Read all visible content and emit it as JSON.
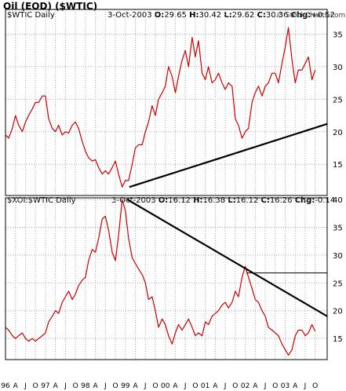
{
  "title": "Oil (EOD) ($WTIC)",
  "watermark": "© StockCharts.com",
  "colors": {
    "price": "#cc0000",
    "trend": "#000000",
    "grid": "#a8a8a8",
    "frame": "#000000"
  },
  "chart_data": [
    {
      "type": "line",
      "symbol": "$WTIC Daily",
      "header": {
        "date": "3-Oct-2003",
        "O": "29.65",
        "H": "30.42",
        "L": "29.62",
        "C": "30.36",
        "Chg": "+0.52"
      },
      "ylim": [
        10.2,
        38.8
      ],
      "yticks": [
        15,
        20,
        25,
        30,
        35
      ],
      "grid": true,
      "series": [
        {
          "x": [
            1996.0,
            1996.08,
            1996.17,
            1996.25,
            1996.33,
            1996.42,
            1996.5,
            1996.58,
            1996.67,
            1996.75,
            1996.83,
            1996.92,
            1997.0,
            1997.08,
            1997.17,
            1997.25,
            1997.33,
            1997.42,
            1997.5,
            1997.58,
            1997.67,
            1997.75,
            1997.83,
            1997.92,
            1998.0,
            1998.08,
            1998.17,
            1998.25,
            1998.33,
            1998.42,
            1998.5,
            1998.58,
            1998.67,
            1998.75,
            1998.83,
            1998.92,
            1999.0,
            1999.08,
            1999.17,
            1999.25,
            1999.33,
            1999.42,
            1999.5,
            1999.58,
            1999.67,
            1999.75,
            1999.83,
            1999.92,
            2000.0,
            2000.08,
            2000.17,
            2000.25,
            2000.33,
            2000.42,
            2000.5,
            2000.58,
            2000.67,
            2000.75,
            2000.83,
            2000.92,
            2001.0,
            2001.08,
            2001.17,
            2001.25,
            2001.33,
            2001.42,
            2001.5,
            2001.58,
            2001.67,
            2001.75,
            2001.83,
            2001.92,
            2002.0,
            2002.08,
            2002.17,
            2002.25,
            2002.33,
            2002.42,
            2002.5,
            2002.58,
            2002.67,
            2002.75,
            2002.83,
            2002.92,
            2003.0,
            2003.08,
            2003.17,
            2003.25,
            2003.33,
            2003.42,
            2003.5,
            2003.58,
            2003.67,
            2003.75
          ],
          "values": [
            19.5,
            19.0,
            20.5,
            22.5,
            21.0,
            20.0,
            21.5,
            22.5,
            23.5,
            24.5,
            24.5,
            25.5,
            25.5,
            22.0,
            20.5,
            20.0,
            21.0,
            19.5,
            20.0,
            19.8,
            21.0,
            21.5,
            20.5,
            18.5,
            17.0,
            16.0,
            15.5,
            15.7,
            14.5,
            13.5,
            14.0,
            13.5,
            14.5,
            15.5,
            13.5,
            11.5,
            12.5,
            12.5,
            15.0,
            17.5,
            18.0,
            18.0,
            20.0,
            21.5,
            24.0,
            22.5,
            25.0,
            26.0,
            27.0,
            30.0,
            28.5,
            26.0,
            28.5,
            31.0,
            32.5,
            30.0,
            34.5,
            31.5,
            34.0,
            29.0,
            28.0,
            30.0,
            27.5,
            28.0,
            29.0,
            27.5,
            26.5,
            27.5,
            27.0,
            22.0,
            21.0,
            19.0,
            20.0,
            20.5,
            24.5,
            26.0,
            27.0,
            25.5,
            27.0,
            27.5,
            29.0,
            29.0,
            27.5,
            30.5,
            33.0,
            36.0,
            31.0,
            27.5,
            29.5,
            29.5,
            30.5,
            31.5,
            28.0,
            29.5
          ]
        }
      ],
      "trendline": {
        "x": [
          1999.1,
          2004.05
        ],
        "y": [
          11.5,
          21.2
        ]
      }
    },
    {
      "type": "line",
      "symbol": "$XOI:$WTIC Daily",
      "header": {
        "date": "3-Oct-2003",
        "O": "16.12",
        "H": "16.38",
        "L": "16.12",
        "C": "16.26",
        "Chg": "-0.14"
      },
      "ylim": [
        11.2,
        40.3
      ],
      "yticks": [
        15,
        20,
        25,
        30,
        35,
        40
      ],
      "grid": true,
      "xticks": [
        "96",
        "A",
        "J",
        "O",
        "97",
        "A",
        "J",
        "O",
        "98",
        "A",
        "J",
        "O",
        "99",
        "A",
        "J",
        "O",
        "00",
        "A",
        "J",
        "O",
        "01",
        "A",
        "J",
        "O",
        "02",
        "A",
        "J",
        "O",
        "03",
        "A",
        "J",
        "O"
      ],
      "series": [
        {
          "x": [
            1996.0,
            1996.08,
            1996.17,
            1996.25,
            1996.33,
            1996.42,
            1996.5,
            1996.58,
            1996.67,
            1996.75,
            1996.83,
            1996.92,
            1997.0,
            1997.08,
            1997.17,
            1997.25,
            1997.33,
            1997.42,
            1997.5,
            1997.58,
            1997.67,
            1997.75,
            1997.83,
            1997.92,
            1998.0,
            1998.08,
            1998.17,
            1998.25,
            1998.33,
            1998.42,
            1998.5,
            1998.58,
            1998.67,
            1998.75,
            1998.83,
            1998.92,
            1999.0,
            1999.08,
            1999.17,
            1999.25,
            1999.33,
            1999.42,
            1999.5,
            1999.58,
            1999.67,
            1999.75,
            1999.83,
            1999.92,
            2000.0,
            2000.08,
            2000.17,
            2000.25,
            2000.33,
            2000.42,
            2000.5,
            2000.58,
            2000.67,
            2000.75,
            2000.83,
            2000.92,
            2001.0,
            2001.08,
            2001.17,
            2001.25,
            2001.33,
            2001.42,
            2001.5,
            2001.58,
            2001.67,
            2001.75,
            2001.83,
            2001.92,
            2002.0,
            2002.08,
            2002.17,
            2002.25,
            2002.33,
            2002.42,
            2002.5,
            2002.58,
            2002.67,
            2002.75,
            2002.83,
            2002.92,
            2003.0,
            2003.08,
            2003.17,
            2003.25,
            2003.33,
            2003.42,
            2003.5,
            2003.58,
            2003.67,
            2003.75
          ],
          "values": [
            17.0,
            16.5,
            15.5,
            15.0,
            15.5,
            16.0,
            15.0,
            14.5,
            15.0,
            14.5,
            15.0,
            15.5,
            16.0,
            18.0,
            19.0,
            20.0,
            19.5,
            21.5,
            22.5,
            23.5,
            22.0,
            23.0,
            24.5,
            25.5,
            26.0,
            29.0,
            31.0,
            30.5,
            33.0,
            36.5,
            37.0,
            34.5,
            30.5,
            29.0,
            33.5,
            40.0,
            38.0,
            33.0,
            29.5,
            28.5,
            27.5,
            26.5,
            25.0,
            22.0,
            22.5,
            20.0,
            17.0,
            18.5,
            17.5,
            15.5,
            14.0,
            16.0,
            17.5,
            16.5,
            17.5,
            18.5,
            17.0,
            15.5,
            16.0,
            15.5,
            18.0,
            17.5,
            19.0,
            19.5,
            20.0,
            21.0,
            21.5,
            20.5,
            21.5,
            23.5,
            22.5,
            26.0,
            28.0,
            26.0,
            24.0,
            22.0,
            21.5,
            20.0,
            19.0,
            17.0,
            16.5,
            16.0,
            15.5,
            14.0,
            13.0,
            12.0,
            13.0,
            15.5,
            16.5,
            16.5,
            15.5,
            16.0,
            17.5,
            16.3
          ]
        }
      ],
      "trendline": {
        "x": [
          1999.05,
          2004.05
        ],
        "y": [
          40.0,
          19.0
        ]
      },
      "resistance": {
        "x": [
          2002.03,
          2004.05
        ],
        "y": [
          26.8,
          26.8
        ]
      }
    }
  ]
}
